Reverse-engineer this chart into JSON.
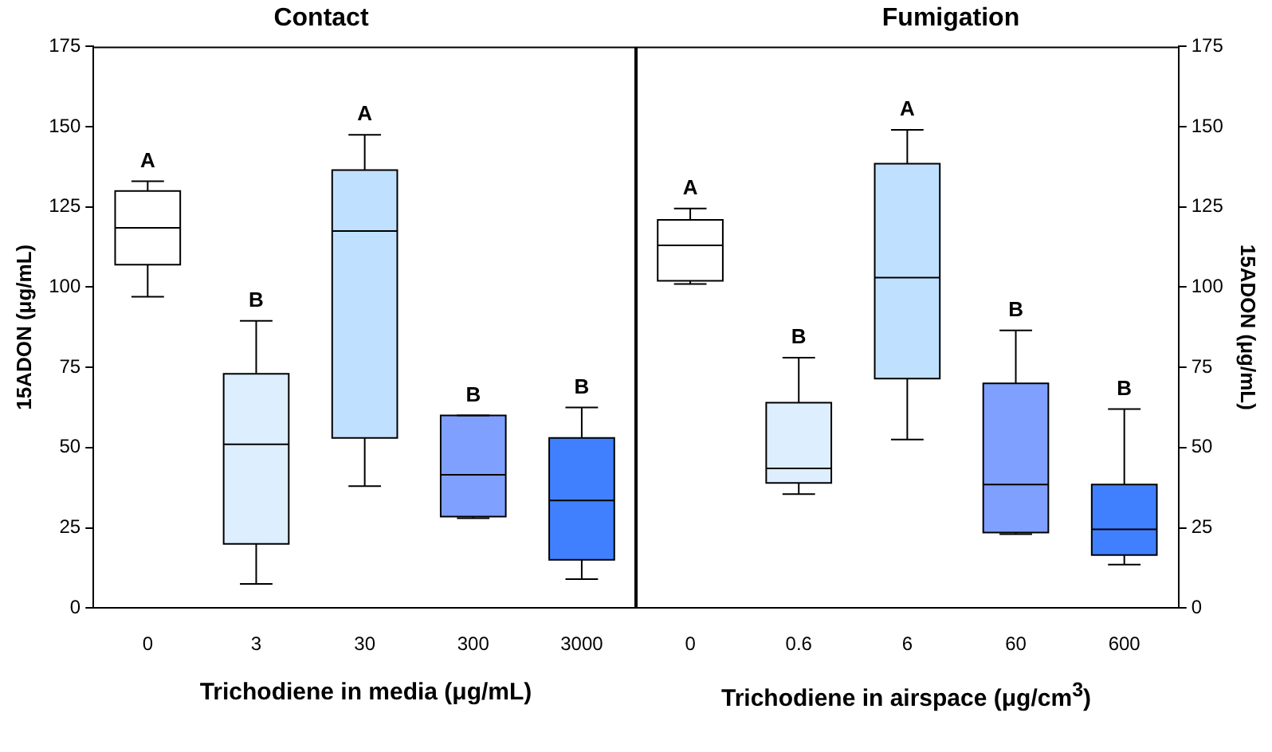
{
  "chart_data": [
    {
      "type": "box",
      "title": "Contact",
      "xlabel": "Trichodiene in media (μg/mL)",
      "ylabel": "15ADON (μg/mL)",
      "categories": [
        "0",
        "3",
        "30",
        "300",
        "3000"
      ],
      "ylim": [
        0,
        175
      ],
      "yticks": [
        0,
        25,
        50,
        75,
        100,
        125,
        150,
        175
      ],
      "grid": false,
      "series": [
        {
          "colors": [
            "#ffffff",
            "#ddeeff",
            "#c0e0ff",
            "#80a0ff",
            "#4080ff"
          ],
          "boxes": [
            {
              "low": 97,
              "q1": 107,
              "median": 118.5,
              "q3": 130,
              "high": 133
            },
            {
              "low": 7.5,
              "q1": 20,
              "median": 51,
              "q3": 73,
              "high": 89.5
            },
            {
              "low": 38,
              "q1": 53,
              "median": 117.5,
              "q3": 136.5,
              "high": 147.5
            },
            {
              "low": 28,
              "q1": 28.5,
              "median": 41.5,
              "q3": 60,
              "high": 60
            },
            {
              "low": 9,
              "q1": 15,
              "median": 33.5,
              "q3": 53,
              "high": 62.5
            }
          ]
        }
      ],
      "annotations": [
        {
          "text": "A",
          "x": "0",
          "y": 133
        },
        {
          "text": "B",
          "x": "3",
          "y": 89.5
        },
        {
          "text": "A",
          "x": "30",
          "y": 147.5
        },
        {
          "text": "B",
          "x": "300",
          "y": 60
        },
        {
          "text": "B",
          "x": "3000",
          "y": 62.5
        }
      ]
    },
    {
      "type": "box",
      "title": "Fumigation",
      "xlabel": "Trichodiene in airspace (μg/cm$^{3}$)",
      "ylabel": "15ADON (μg/mL)",
      "categories": [
        "0",
        "0.6",
        "6",
        "60",
        "600"
      ],
      "ylim": [
        0,
        175
      ],
      "yticks": [
        0,
        25,
        50,
        75,
        100,
        125,
        150,
        175
      ],
      "grid": false,
      "series": [
        {
          "colors": [
            "#ffffff",
            "#ddeeff",
            "#c0e0ff",
            "#80a0ff",
            "#4080ff"
          ],
          "boxes": [
            {
              "low": 101,
              "q1": 102,
              "median": 113,
              "q3": 121,
              "high": 124.5
            },
            {
              "low": 35.5,
              "q1": 39,
              "median": 43.5,
              "q3": 64,
              "high": 78
            },
            {
              "low": 52.5,
              "q1": 71.5,
              "median": 103,
              "q3": 138.5,
              "high": 149
            },
            {
              "low": 23,
              "q1": 23.5,
              "median": 38.5,
              "q3": 70,
              "high": 86.5
            },
            {
              "low": 13.5,
              "q1": 16.5,
              "median": 24.5,
              "q3": 38.5,
              "high": 62
            }
          ]
        }
      ],
      "annotations": [
        {
          "text": "A",
          "x": "0",
          "y": 124.5
        },
        {
          "text": "B",
          "x": "0.6",
          "y": 78
        },
        {
          "text": "A",
          "x": "6",
          "y": 149
        },
        {
          "text": "B",
          "x": "60",
          "y": 86.5
        },
        {
          "text": "B",
          "x": "600",
          "y": 62
        }
      ]
    }
  ]
}
